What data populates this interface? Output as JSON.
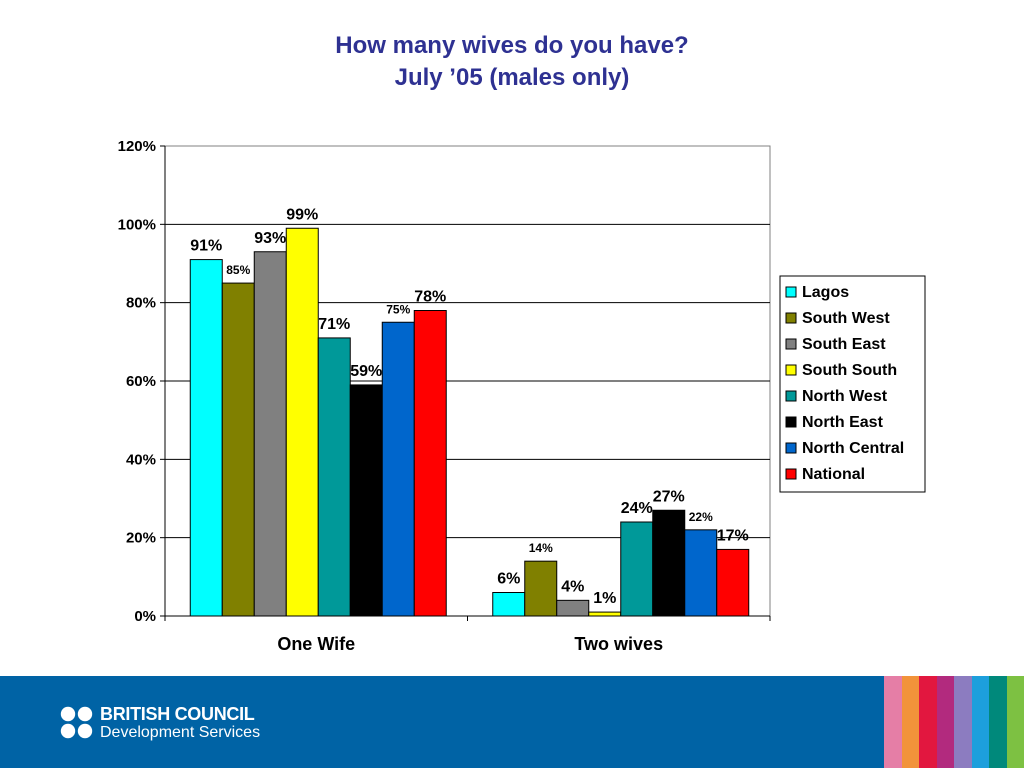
{
  "slide": {
    "title_line1": "How many wives do you have?",
    "title_line2": "July ’05 (males only)"
  },
  "footer": {
    "brand_line1": "BRITISH COUNCIL",
    "brand_line2": "Development Services",
    "background_color": "#0063a5",
    "stripe_colors": [
      "#e57ea6",
      "#f2933a",
      "#e2173f",
      "#b22a7e",
      "#8c7cc0",
      "#1d9fdc",
      "#00897b",
      "#7dc142"
    ]
  },
  "chart_data": {
    "type": "bar",
    "title": "",
    "xlabel": "",
    "ylabel": "",
    "categories": [
      "One Wife",
      "Two wives"
    ],
    "ylim": [
      0,
      120
    ],
    "yticks": [
      0,
      20,
      40,
      60,
      80,
      100,
      120
    ],
    "ytick_labels": [
      "0%",
      "20%",
      "40%",
      "60%",
      "80%",
      "100%",
      "120%"
    ],
    "grid": true,
    "legend_position": "right",
    "series": [
      {
        "name": "Lagos",
        "color": "#00ffff",
        "values": [
          91,
          6
        ],
        "labels": [
          "91%",
          "6%"
        ]
      },
      {
        "name": "South West",
        "color": "#808000",
        "values": [
          85,
          14
        ],
        "labels": [
          "85%",
          "14%"
        ]
      },
      {
        "name": "South East",
        "color": "#808080",
        "values": [
          93,
          4
        ],
        "labels": [
          "93%",
          "4%"
        ]
      },
      {
        "name": "South South",
        "color": "#ffff00",
        "values": [
          99,
          1
        ],
        "labels": [
          "99%",
          "1%"
        ]
      },
      {
        "name": "North West",
        "color": "#009999",
        "values": [
          71,
          24
        ],
        "labels": [
          "71%",
          "24%"
        ]
      },
      {
        "name": "North East",
        "color": "#000000",
        "values": [
          59,
          27
        ],
        "labels": [
          "59%",
          "27%"
        ]
      },
      {
        "name": "North Central",
        "color": "#0066cc",
        "values": [
          75,
          22
        ],
        "labels": [
          "75%",
          "22%"
        ]
      },
      {
        "name": "National",
        "color": "#ff0000",
        "values": [
          78,
          17
        ],
        "labels": [
          "78%",
          "17%"
        ]
      }
    ]
  }
}
